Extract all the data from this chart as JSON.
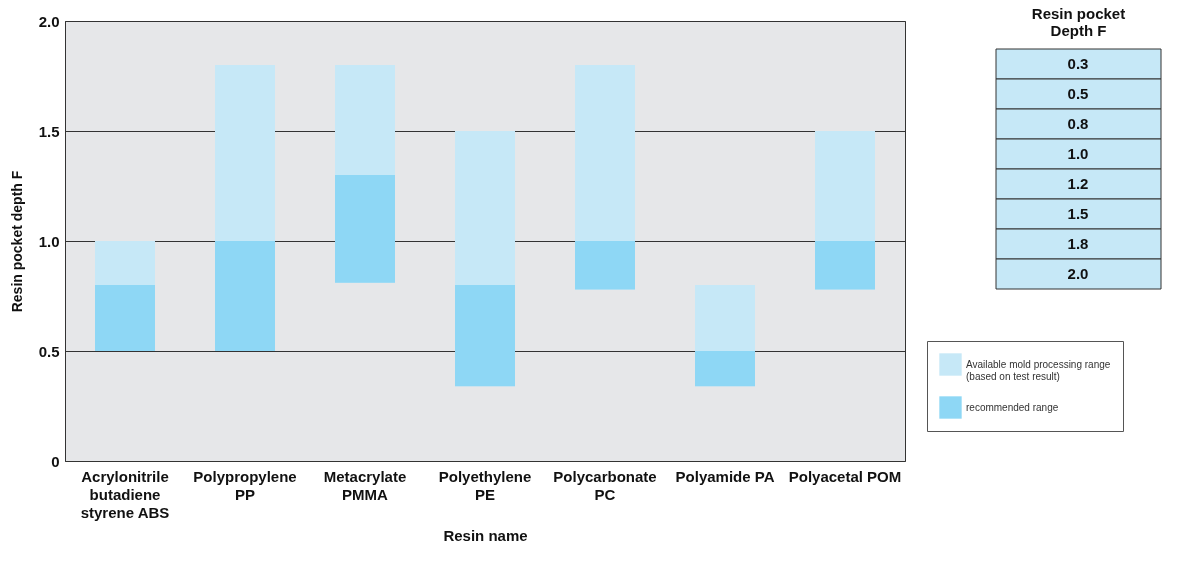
{
  "chart_data": [
    {
      "type": "bar",
      "xlabel": "Resin name",
      "ylabel": "Resin pocket depth F",
      "categories": [
        "Acrylonitrile butadiene styrene ABS",
        "Polypropylene PP",
        "Metacrylate PMMA",
        "Polyethylene PE",
        "Polycarbonate PC",
        "Polyamide PA",
        "Polyacetal POM"
      ],
      "series": [
        {
          "name": "Available mold processing range (based on test result)",
          "color": "#c6e8f7",
          "base": [
            0.5,
            0.5,
            0.81,
            0.34,
            0.78,
            0.34,
            0.78
          ],
          "values": [
            0.5,
            1.3,
            0.99,
            1.16,
            1.02,
            0.46,
            0.72
          ]
        },
        {
          "name": "recommended range",
          "color": "#8ed7f5",
          "base": [
            0.5,
            0.5,
            0.81,
            0.34,
            0.78,
            0.34,
            0.78
          ],
          "values": [
            0.3,
            0.5,
            0.49,
            0.46,
            0.22,
            0.16,
            0.22
          ]
        }
      ],
      "ylim": [
        0,
        2
      ],
      "yticks": [
        0,
        0.5,
        {
          "value": 1,
          "label": "1.0"
        },
        1.5,
        {
          "value": 2,
          "label": "2.0"
        }
      ],
      "grid": "y",
      "legend": "right"
    },
    {
      "type": "other",
      "title": "Resin pocket Depth F",
      "annotations": [
        "0.3",
        "0.5",
        "0.8",
        "1.0",
        "1.2",
        "1.5",
        "1.8",
        "2.0"
      ]
    }
  ]
}
